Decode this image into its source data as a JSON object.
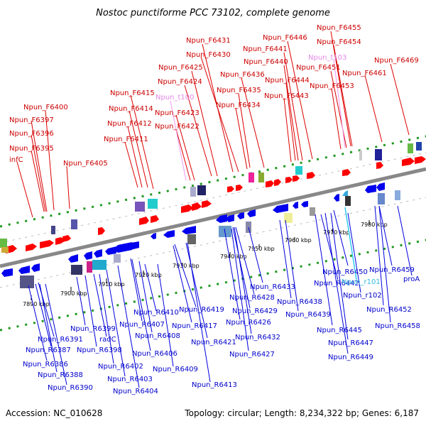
{
  "title": "Nostoc punctiforme PCC 73102, complete genome",
  "footer": {
    "accession": "Accession: NC_010628",
    "summary": "Topology: circular; Length: 8,234,322 bp; Genes: 6,187"
  },
  "colors": {
    "forward": "#cc0000",
    "reverse": "#0000cc",
    "trna": "#e288e8",
    "rrna": "#33bbdd",
    "backbone": "#888888",
    "tick_green": "#229922"
  },
  "scale_labels": [
    "7890 kbp",
    "7900 kbp",
    "7910 kbp",
    "7920 kbp",
    "7930 kbp",
    "7940 kbp",
    "7950 kbp",
    "7960 kbp",
    "7970 kbp",
    "7980 kbp"
  ],
  "top_labels": [
    {
      "text": "Npun_F6455",
      "color": "red"
    },
    {
      "text": "Npun_F6431",
      "color": "red"
    },
    {
      "text": "Npun_F6446",
      "color": "red"
    },
    {
      "text": "Npun_F6454",
      "color": "red"
    },
    {
      "text": "Npun_F6441",
      "color": "red"
    },
    {
      "text": "Npun_F6430",
      "color": "red"
    },
    {
      "text": "Npun_t103",
      "color": "pink"
    },
    {
      "text": "Npun_F6469",
      "color": "red"
    },
    {
      "text": "Npun_F6440",
      "color": "red"
    },
    {
      "text": "Npun_F6425",
      "color": "red"
    },
    {
      "text": "Npun_F6451",
      "color": "red"
    },
    {
      "text": "Npun_F6436",
      "color": "red"
    },
    {
      "text": "Npun_F6461",
      "color": "red"
    },
    {
      "text": "Npun_F6424",
      "color": "red"
    },
    {
      "text": "Npun_F6444",
      "color": "red"
    },
    {
      "text": "Npun_F6453",
      "color": "red"
    },
    {
      "text": "Npun_F6415",
      "color": "red"
    },
    {
      "text": "Npun_F6435",
      "color": "red"
    },
    {
      "text": "Npun_t100",
      "color": "pink"
    },
    {
      "text": "Npun_F6443",
      "color": "red"
    },
    {
      "text": "Npun_F6400",
      "color": "red"
    },
    {
      "text": "Npun_F6414",
      "color": "red"
    },
    {
      "text": "Npun_F6434",
      "color": "red"
    },
    {
      "text": "Npun_F6423",
      "color": "red"
    },
    {
      "text": "Npun_F6397",
      "color": "red"
    },
    {
      "text": "Npun_F6412",
      "color": "red"
    },
    {
      "text": "Npun_F6422",
      "color": "red"
    },
    {
      "text": "Npun_F6396",
      "color": "red"
    },
    {
      "text": "Npun_F6411",
      "color": "red"
    },
    {
      "text": "Npun_F6395",
      "color": "red"
    },
    {
      "text": "infC",
      "color": "red"
    },
    {
      "text": "Npun_F6405",
      "color": "red"
    }
  ],
  "bottom_labels": [
    {
      "text": "Npun_R6450",
      "color": "blue"
    },
    {
      "text": "Npun_R6459",
      "color": "blue"
    },
    {
      "text": "Npun_R6442",
      "color": "blue"
    },
    {
      "text": "Npun_r101",
      "color": "cyan"
    },
    {
      "text": "proA",
      "color": "blue"
    },
    {
      "text": "Npun_R6433",
      "color": "blue"
    },
    {
      "text": "Npun_r102",
      "color": "blue"
    },
    {
      "text": "Npun_R6428",
      "color": "blue"
    },
    {
      "text": "Npun_R6438",
      "color": "blue"
    },
    {
      "text": "Npun_R6452",
      "color": "blue"
    },
    {
      "text": "Npun_R6410",
      "color": "blue"
    },
    {
      "text": "Npun_R6419",
      "color": "blue"
    },
    {
      "text": "Npun_R6429",
      "color": "blue"
    },
    {
      "text": "Npun_R6439",
      "color": "blue"
    },
    {
      "text": "Npun_R6407",
      "color": "blue"
    },
    {
      "text": "Npun_R6399",
      "color": "blue"
    },
    {
      "text": "Npun_R6417",
      "color": "blue"
    },
    {
      "text": "Npun_R6426",
      "color": "blue"
    },
    {
      "text": "Npun_R6458",
      "color": "blue"
    },
    {
      "text": "Npun_R6445",
      "color": "blue"
    },
    {
      "text": "radC",
      "color": "blue"
    },
    {
      "text": "Npun_R6408",
      "color": "blue"
    },
    {
      "text": "Npun_R6432",
      "color": "blue"
    },
    {
      "text": "Npun_R6391",
      "color": "blue"
    },
    {
      "text": "Npun_R6421",
      "color": "blue"
    },
    {
      "text": "Npun_R6447",
      "color": "blue"
    },
    {
      "text": "Npun_R6387",
      "color": "blue"
    },
    {
      "text": "Npun_R6398",
      "color": "blue"
    },
    {
      "text": "Npun_R6406",
      "color": "blue"
    },
    {
      "text": "Npun_R6427",
      "color": "blue"
    },
    {
      "text": "Npun_R6449",
      "color": "blue"
    },
    {
      "text": "Npun_R6386",
      "color": "blue"
    },
    {
      "text": "Npun_R6402",
      "color": "blue"
    },
    {
      "text": "Npun_R6409",
      "color": "blue"
    },
    {
      "text": "Npun_R6388",
      "color": "blue"
    },
    {
      "text": "Npun_R6403",
      "color": "blue"
    },
    {
      "text": "Npun_R6413",
      "color": "blue"
    },
    {
      "text": "Npun_R6390",
      "color": "blue"
    },
    {
      "text": "Npun_R6404",
      "color": "blue"
    }
  ]
}
